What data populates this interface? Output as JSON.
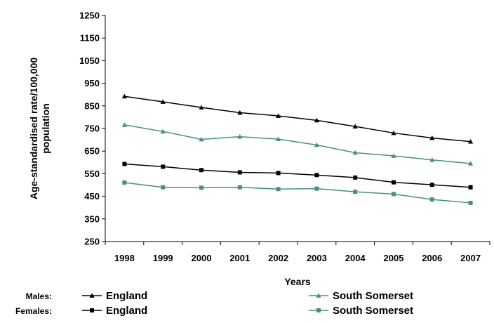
{
  "chart_data": {
    "type": "line",
    "xlabel": "Years",
    "ylabel": "Age-standardised rate/100,000 population",
    "ylim": [
      250,
      1250
    ],
    "yticks": [
      250,
      350,
      450,
      550,
      650,
      750,
      850,
      950,
      1050,
      1150,
      1250
    ],
    "categories": [
      "1998",
      "1999",
      "2000",
      "2001",
      "2002",
      "2003",
      "2004",
      "2005",
      "2006",
      "2007"
    ],
    "grid": false,
    "legend_position": "bottom",
    "legend_groups": [
      "Males:",
      "Females:"
    ],
    "series": [
      {
        "name": "England",
        "group": "Males:",
        "color": "#000000",
        "marker": "triangle",
        "values": [
          892,
          868,
          843,
          820,
          806,
          786,
          759,
          730,
          708,
          692
        ]
      },
      {
        "name": "South Somerset",
        "group": "Males:",
        "color": "#4a8f80",
        "marker": "triangle",
        "values": [
          766,
          737,
          702,
          714,
          703,
          677,
          643,
          629,
          611,
          595
        ]
      },
      {
        "name": "England",
        "group": "Females:",
        "color": "#000000",
        "marker": "square",
        "values": [
          593,
          581,
          566,
          556,
          553,
          544,
          533,
          512,
          501,
          490
        ]
      },
      {
        "name": "South Somerset",
        "group": "Females:",
        "color": "#4a8f80",
        "marker": "square",
        "values": [
          511,
          490,
          488,
          490,
          482,
          484,
          470,
          460,
          436,
          421
        ]
      }
    ]
  }
}
